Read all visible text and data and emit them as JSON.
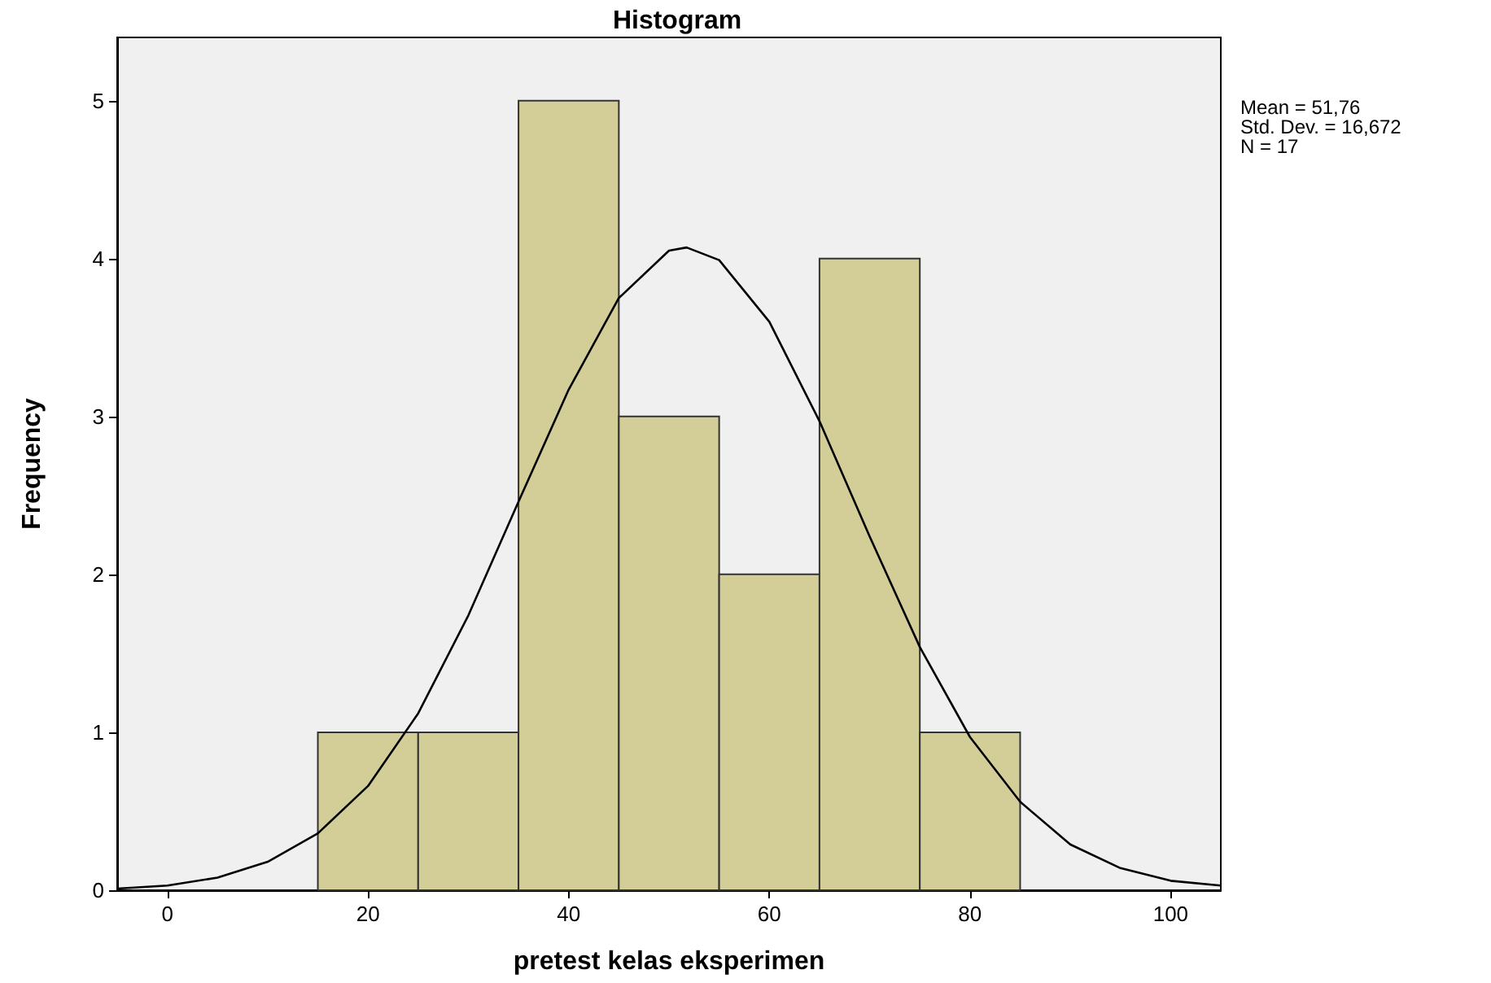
{
  "chart_data": {
    "type": "histogram",
    "title": "Histogram",
    "xlabel": "pretest kelas eksperimen",
    "ylabel": "Frequency",
    "annotations": [
      "Mean = 51,76",
      "Std. Dev. = 16,672",
      "N = 17"
    ],
    "bins": [
      15,
      25,
      35,
      45,
      55,
      65,
      75,
      85
    ],
    "series": [
      {
        "color": "#d3ce97",
        "values": [
          1,
          1,
          5,
          3,
          2,
          4,
          1
        ]
      },
      {
        "type": "line",
        "color": "#000000",
        "x": [
          -5,
          0,
          5,
          10,
          15,
          20,
          25,
          30,
          35,
          40,
          45,
          50,
          51.76,
          55,
          60,
          65,
          70,
          75,
          80,
          85,
          90,
          95,
          100,
          105
        ],
        "values": [
          0.01,
          0.03,
          0.08,
          0.18,
          0.36,
          0.66,
          1.12,
          1.74,
          2.46,
          3.17,
          3.75,
          4.05,
          4.07,
          3.99,
          3.6,
          2.97,
          2.24,
          1.54,
          0.97,
          0.56,
          0.29,
          0.14,
          0.06,
          0.03
        ]
      }
    ],
    "xlim": [
      -5,
      105
    ],
    "xticks": [
      0,
      20,
      40,
      60,
      80,
      100
    ],
    "ylim": [
      0,
      5.4
    ],
    "yticks": [
      0,
      1,
      2,
      3,
      4,
      5
    ],
    "grid": false,
    "marker": "none",
    "line_style": "solid"
  }
}
